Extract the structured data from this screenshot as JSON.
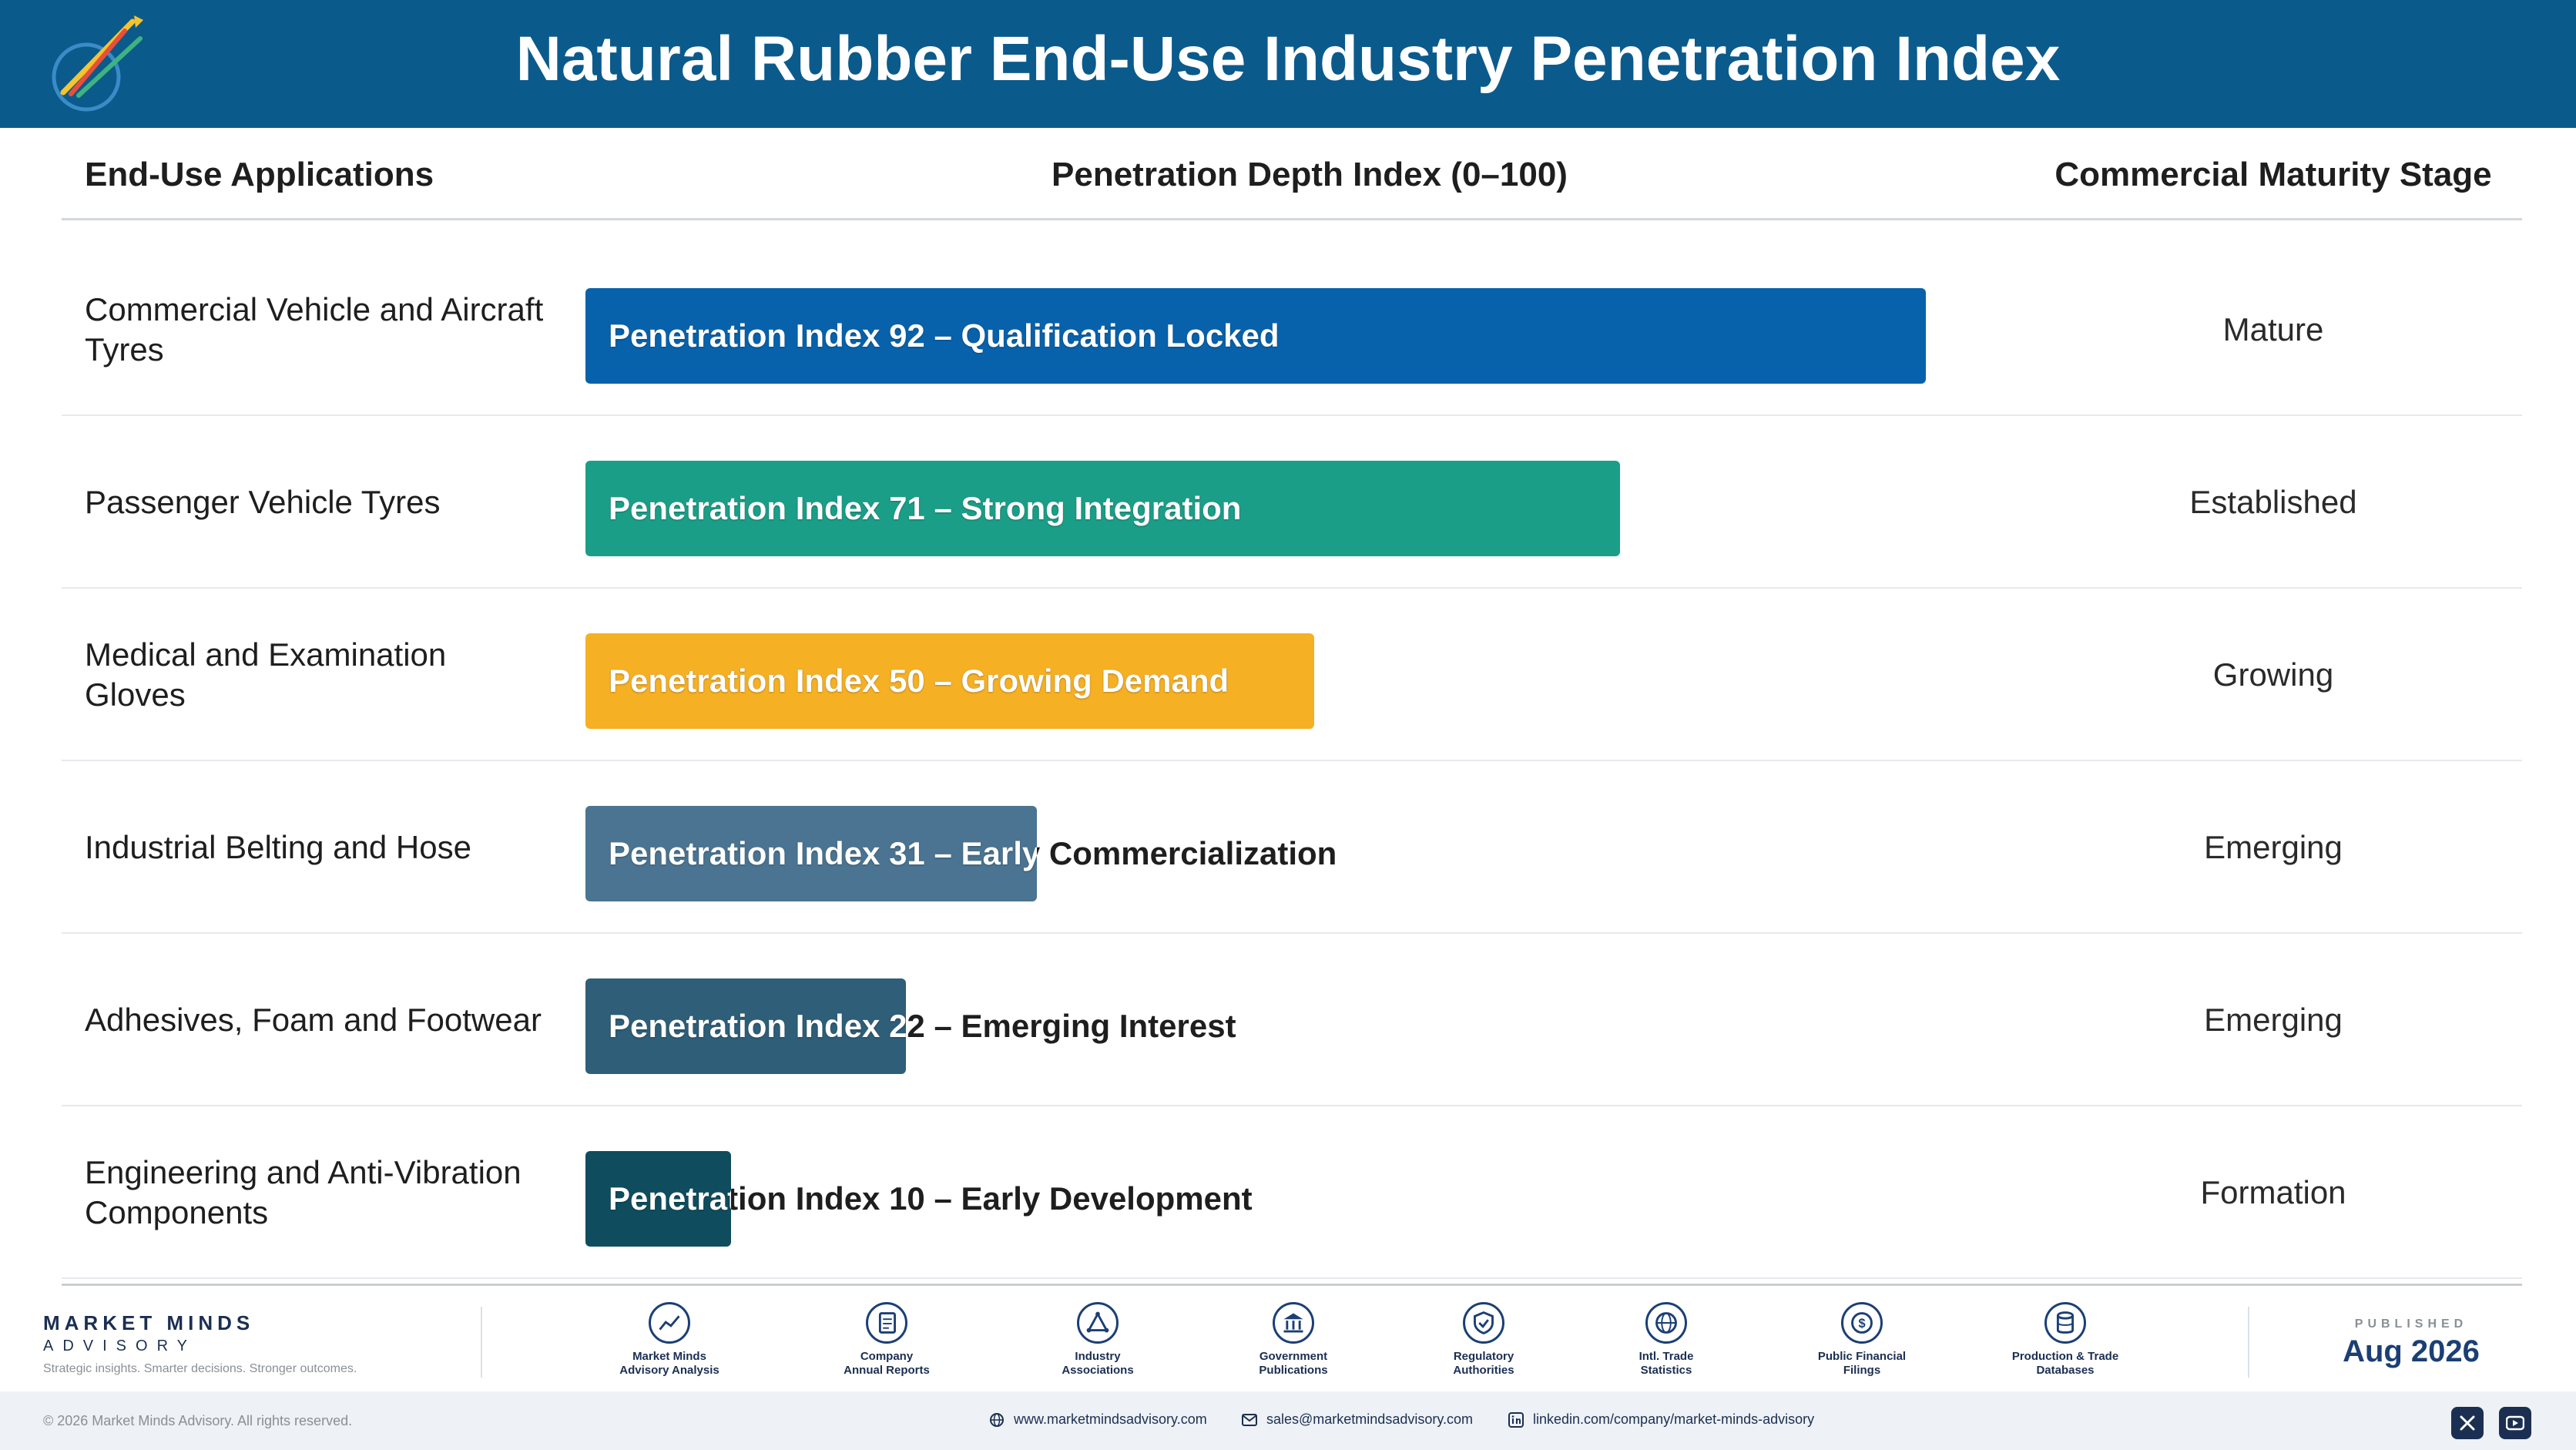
{
  "header": {
    "title": "Natural Rubber End-Use Industry Penetration Index",
    "logo_caption": "Market Minds Advisory"
  },
  "columns": {
    "applications": "End-Use Applications",
    "index": "Penetration Depth Index (0–100)",
    "stage": "Commercial Maturity Stage"
  },
  "chart_data": {
    "type": "bar",
    "orientation": "horizontal",
    "title": "Natural Rubber End-Use Industry Penetration Index",
    "xlabel": "Penetration Depth Index (0–100)",
    "xlim": [
      0,
      100
    ],
    "categories": [
      "Commercial Vehicle and Aircraft Tyres",
      "Passenger Vehicle Tyres",
      "Medical and Examination Gloves",
      "Industrial Belting and Hose",
      "Adhesives, Foam and Footwear",
      "Engineering and Anti-Vibration Components"
    ],
    "values": [
      92,
      71,
      50,
      31,
      22,
      10
    ],
    "data_labels": [
      "Penetration Index 92 – Qualification Locked",
      "Penetration Index 71 – Strong Integration",
      "Penetration Index 50 – Growing Demand",
      "Penetration Index 31 – Early Commercialization",
      "Penetration Index 22 – Emerging Interest",
      "Penetration Index 10 – Early Development"
    ],
    "stages": [
      "Mature",
      "Established",
      "Growing",
      "Emerging",
      "Emerging",
      "Formation"
    ],
    "colors": [
      "#0762ab",
      "#1b9e87",
      "#f6b024",
      "#4a7491",
      "#2e5e78",
      "#0f4d5e"
    ]
  },
  "footer": {
    "brand_name": "MARKET MINDS",
    "brand_sub": "ADVISORY",
    "tagline": "Strategic insights. Smarter decisions. Stronger outcomes.",
    "sources": [
      {
        "icon": "chart-icon",
        "line1": "Market Minds",
        "line2": "Advisory Analysis"
      },
      {
        "icon": "document-icon",
        "line1": "Company",
        "line2": "Annual Reports"
      },
      {
        "icon": "network-icon",
        "line1": "Industry",
        "line2": "Associations"
      },
      {
        "icon": "government-icon",
        "line1": "Government",
        "line2": "Publications"
      },
      {
        "icon": "shield-icon",
        "line1": "Regulatory",
        "line2": "Authorities"
      },
      {
        "icon": "globe-icon",
        "line1": "Intl. Trade",
        "line2": "Statistics"
      },
      {
        "icon": "coin-icon",
        "line1": "Public Financial",
        "line2": "Filings"
      },
      {
        "icon": "database-icon",
        "line1": "Production & Trade",
        "line2": "Databases"
      }
    ],
    "published_label": "PUBLISHED",
    "published_date": "Aug 2026",
    "copyright": "© 2026 Market Minds Advisory. All rights reserved.",
    "website": "www.marketmindsadvisory.com",
    "email": "sales@marketmindsadvisory.com",
    "linkedin": "linkedin.com/company/market-minds-advisory"
  }
}
